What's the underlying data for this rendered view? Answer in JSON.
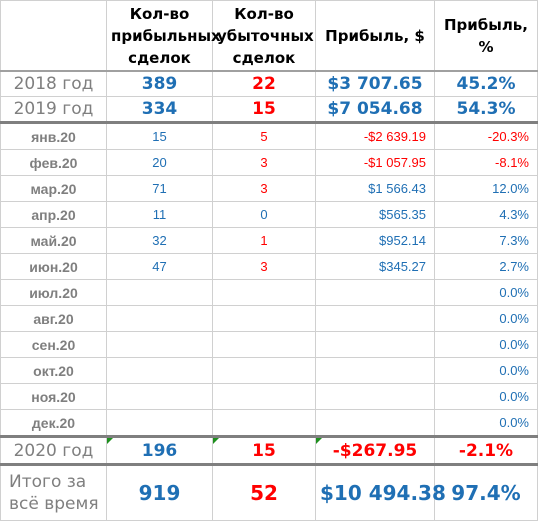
{
  "header": {
    "col0": "",
    "col1": "Кол-во прибыльных сделок",
    "col2": "Кол-во убыточных сделок",
    "col3": "Прибыль, $",
    "col4": "Прибыль, %"
  },
  "years": [
    {
      "label": "2018 год",
      "profitable": "389",
      "losing": "22",
      "profit_usd": "$3 707.65",
      "profit_pct": "45.2%"
    },
    {
      "label": "2019 год",
      "profitable": "334",
      "losing": "15",
      "profit_usd": "$7 054.68",
      "profit_pct": "54.3%"
    }
  ],
  "months": [
    {
      "label": "янв.20",
      "profitable": "15",
      "losing": "5",
      "profit_usd": "-$2 639.19",
      "profit_pct": "-20.3%",
      "negative": true
    },
    {
      "label": "фев.20",
      "profitable": "20",
      "losing": "3",
      "profit_usd": "-$1 057.95",
      "profit_pct": "-8.1%",
      "negative": true
    },
    {
      "label": "мар.20",
      "profitable": "71",
      "losing": "3",
      "profit_usd": "$1 566.43",
      "profit_pct": "12.0%",
      "negative": false
    },
    {
      "label": "апр.20",
      "profitable": "11",
      "losing": "0",
      "profit_usd": "$565.35",
      "profit_pct": "4.3%",
      "negative": false
    },
    {
      "label": "май.20",
      "profitable": "32",
      "losing": "1",
      "profit_usd": "$952.14",
      "profit_pct": "7.3%",
      "negative": false
    },
    {
      "label": "июн.20",
      "profitable": "47",
      "losing": "3",
      "profit_usd": "$345.27",
      "profit_pct": "2.7%",
      "negative": false
    },
    {
      "label": "июл.20",
      "profitable": "",
      "losing": "",
      "profit_usd": "",
      "profit_pct": "0.0%",
      "negative": false
    },
    {
      "label": "авг.20",
      "profitable": "",
      "losing": "",
      "profit_usd": "",
      "profit_pct": "0.0%",
      "negative": false
    },
    {
      "label": "сен.20",
      "profitable": "",
      "losing": "",
      "profit_usd": "",
      "profit_pct": "0.0%",
      "negative": false
    },
    {
      "label": "окт.20",
      "profitable": "",
      "losing": "",
      "profit_usd": "",
      "profit_pct": "0.0%",
      "negative": false
    },
    {
      "label": "ноя.20",
      "profitable": "",
      "losing": "",
      "profit_usd": "",
      "profit_pct": "0.0%",
      "negative": false
    },
    {
      "label": "дек.20",
      "profitable": "",
      "losing": "",
      "profit_usd": "",
      "profit_pct": "0.0%",
      "negative": false
    }
  ],
  "year2020": {
    "label": "2020 год",
    "profitable": "196",
    "losing": "15",
    "profit_usd": "-$267.95",
    "profit_pct": "-2.1%"
  },
  "total": {
    "label": "Итого за всё время",
    "profitable": "919",
    "losing": "52",
    "profit_usd": "$10 494.38",
    "profit_pct": "97.4%"
  },
  "colors": {
    "positive": "#1f6fb4",
    "negative": "#ff0000",
    "label_gray": "#7f7f7f",
    "marker_green": "#1e8f1e"
  }
}
